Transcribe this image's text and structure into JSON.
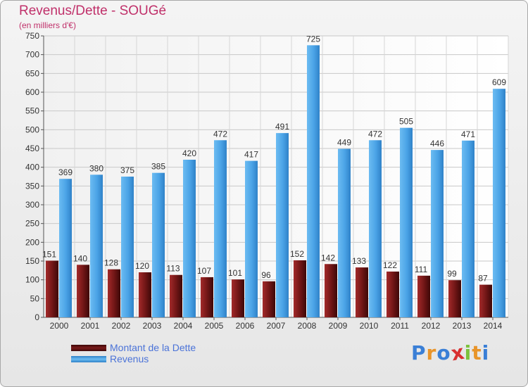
{
  "chart_data": {
    "type": "bar",
    "title": "Revenus/Dette - SOUGé",
    "subtitle": "(en milliers d'€)",
    "categories": [
      "2000",
      "2001",
      "2002",
      "2003",
      "2004",
      "2005",
      "2006",
      "2007",
      "2008",
      "2009",
      "2010",
      "2011",
      "2012",
      "2013",
      "2014"
    ],
    "series": [
      {
        "name": "Montant de la Dette",
        "color": "#6e1515",
        "values": [
          151,
          140,
          128,
          120,
          113,
          107,
          101,
          96,
          152,
          142,
          133,
          122,
          111,
          99,
          87
        ]
      },
      {
        "name": "Revenus",
        "color": "#4aa3e6",
        "values": [
          369,
          380,
          375,
          385,
          420,
          472,
          417,
          491,
          725,
          449,
          472,
          505,
          446,
          471,
          609
        ]
      }
    ],
    "ylim": [
      0,
      750
    ],
    "yticks": [
      0,
      50,
      100,
      150,
      200,
      250,
      300,
      350,
      400,
      450,
      500,
      550,
      600,
      650,
      700,
      750
    ],
    "grid": true,
    "legend_position": "bottom-left"
  },
  "brand": {
    "letters": [
      {
        "char": "P",
        "color": "#3a7fd6"
      },
      {
        "char": "r",
        "color": "#e8942a"
      },
      {
        "char": "o",
        "color": "#3a7fd6"
      },
      {
        "char": "x",
        "color": "#d83030"
      },
      {
        "char": "i",
        "color": "#7cc23c"
      },
      {
        "char": "t",
        "color": "#e8942a"
      },
      {
        "char": "i",
        "color": "#3a7fd6"
      }
    ]
  }
}
